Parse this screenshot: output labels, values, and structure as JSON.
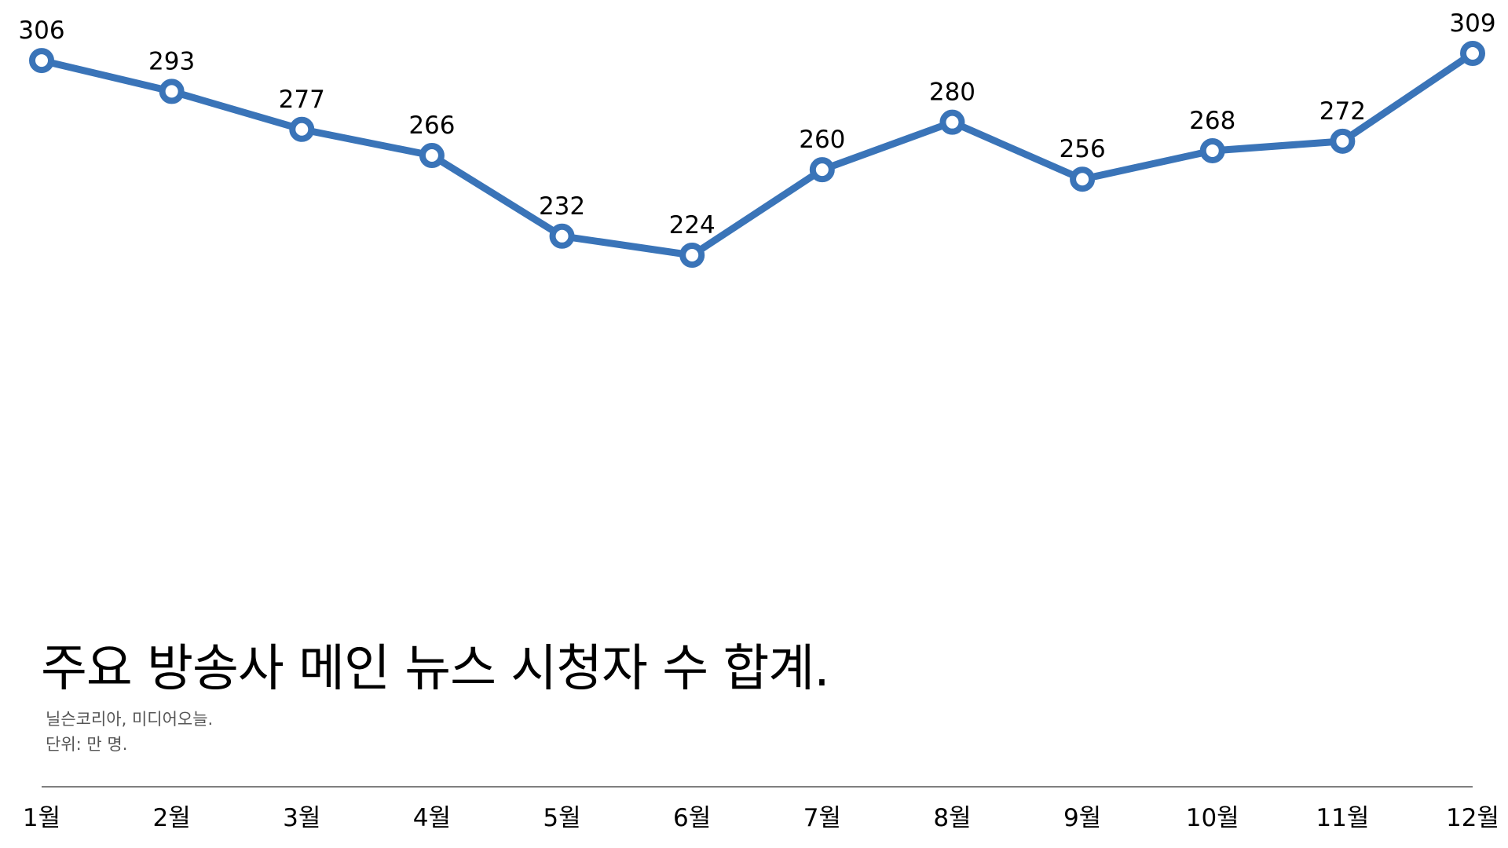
{
  "chart_data": {
    "type": "line",
    "title": "주요 방송사 메인 뉴스 시청자 수 합계.",
    "source": "닐슨코리아, 미디어오늘.",
    "unit": "단위: 만 명.",
    "categories": [
      "1월",
      "2월",
      "3월",
      "4월",
      "5월",
      "6월",
      "7월",
      "8월",
      "9월",
      "10월",
      "11월",
      "12월"
    ],
    "series": [
      {
        "values": [
          306,
          293,
          277,
          266,
          232,
          224,
          260,
          280,
          256,
          268,
          272,
          309
        ]
      }
    ],
    "line_color": "#3a74b8",
    "marker_fill": "#ffffff",
    "axis_color": "#555555",
    "grid": false,
    "legend": "none"
  }
}
